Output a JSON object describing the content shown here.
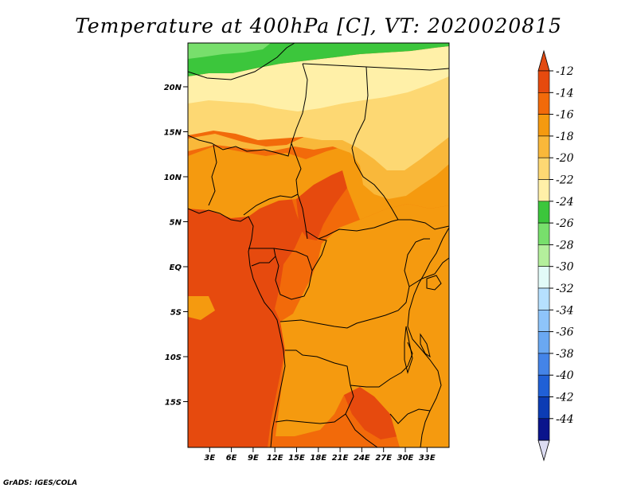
{
  "title": "Temperature at 400hPa [C], VT: 2020020815",
  "credit": "GrADS: IGES/COLA",
  "lat_labels": [
    "20N",
    "15N",
    "10N",
    "5N",
    "EQ",
    "5S",
    "10S",
    "15S"
  ],
  "lon_labels": [
    "3E",
    "6E",
    "9E",
    "12E",
    "15E",
    "18E",
    "21E",
    "24E",
    "27E",
    "30E",
    "33E"
  ],
  "colorbar": {
    "labels": [
      "-12",
      "-14",
      "-16",
      "-18",
      "-20",
      "-22",
      "-24",
      "-26",
      "-28",
      "-30",
      "-32",
      "-34",
      "-36",
      "-38",
      "-40",
      "-42",
      "-44"
    ],
    "colors": [
      "#e64a0e",
      "#f26a0a",
      "#f59a0f",
      "#f9b83a",
      "#fdd873",
      "#fff0a8",
      "#3cc63c",
      "#78df6c",
      "#b4ef9c",
      "#e2fbf8",
      "#b6e0ff",
      "#8ec4fa",
      "#6aa8f2",
      "#4484e8",
      "#2060d6",
      "#0c3cb4",
      "#0a148c"
    ],
    "top_triangle_color": "#e24a12",
    "bottom_triangle_color": "#dcdcf2"
  },
  "chart_data": {
    "type": "heatmap",
    "variable": "Temperature at 400hPa",
    "units": "C",
    "valid_time": "2020020815",
    "lon_range": [
      0,
      34
    ],
    "lat_range": [
      -20,
      24.5
    ],
    "contour_levels": [
      -44,
      -42,
      -40,
      -38,
      -36,
      -34,
      -32,
      -30,
      -28,
      -26,
      -24,
      -22,
      -20,
      -18,
      -16,
      -14,
      -12
    ]
  }
}
